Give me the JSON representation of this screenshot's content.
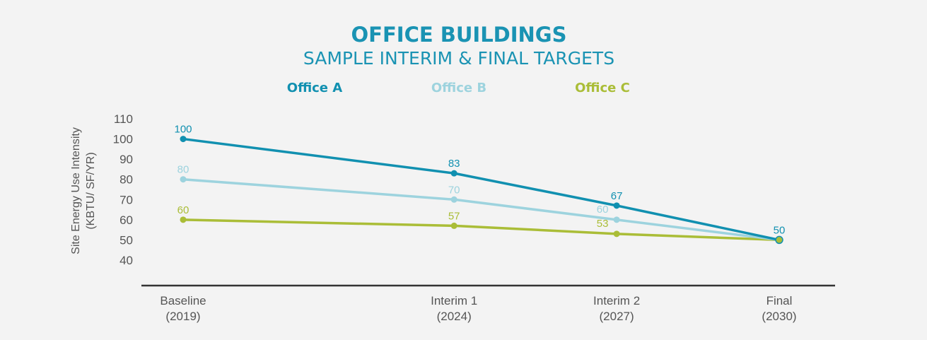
{
  "chart_data": {
    "type": "line",
    "title": "OFFICE BUILDINGS",
    "subtitle": "SAMPLE INTERIM & FINAL TARGETS",
    "ylabel_line1": "Site Energy Use Intensity",
    "ylabel_line2": "(KBTU/ SF/YR)",
    "xlabel": "",
    "ylim": [
      40,
      110
    ],
    "yticks": [
      110,
      100,
      90,
      80,
      70,
      60,
      50,
      40
    ],
    "categories": [
      {
        "line1": "Baseline",
        "line2": "(2019)"
      },
      {
        "line1": "Interim 1",
        "line2": "(2024)"
      },
      {
        "line1": "Interim 2",
        "line2": "(2027)"
      },
      {
        "line1": "Final",
        "line2": "(2030)"
      }
    ],
    "x_years": [
      2019,
      2024,
      2027,
      2030
    ],
    "legend_position": "top",
    "grid": false,
    "series": [
      {
        "name": "Office A",
        "color": "#1190b0",
        "values": [
          100,
          83,
          67,
          50
        ],
        "labels": [
          "100",
          "83",
          "67",
          "50"
        ]
      },
      {
        "name": "Office B",
        "color": "#9dd3de",
        "values": [
          80,
          70,
          60,
          50
        ],
        "labels": [
          "80",
          "70",
          "60",
          ""
        ]
      },
      {
        "name": "Office C",
        "color": "#aabd37",
        "values": [
          60,
          57,
          53,
          50
        ],
        "labels": [
          "60",
          "57",
          "53",
          ""
        ]
      }
    ],
    "colors": {
      "title": "#1a93b3",
      "axis": "#333333",
      "tick_text": "#555555",
      "background": "#f3f3f3"
    }
  }
}
